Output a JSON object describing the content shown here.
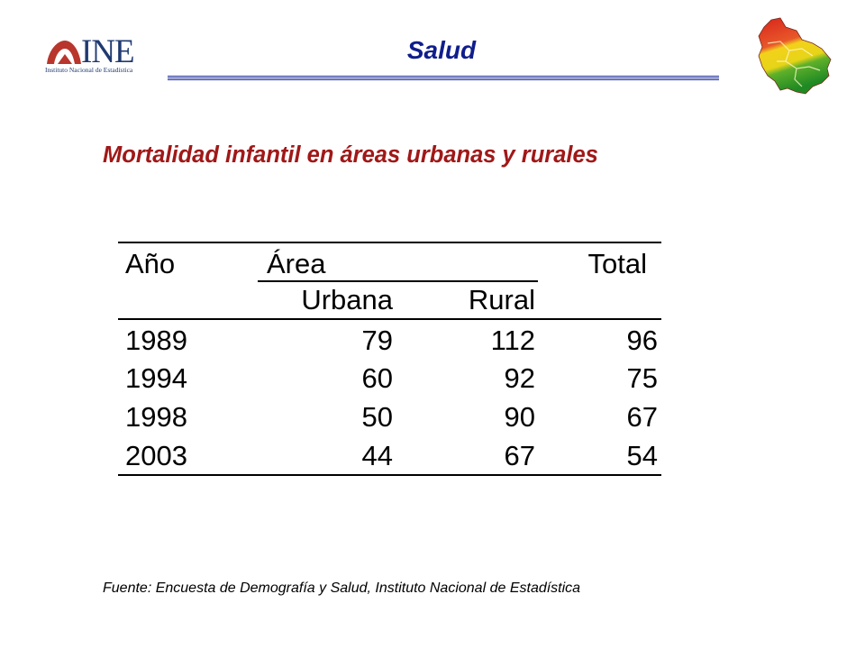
{
  "header": {
    "logo_text": "INE",
    "logo_subtitle": "Instituto Nacional de Estadística",
    "title": "Salud",
    "map_icon": "bolivia-map-icon"
  },
  "subtitle": "Mortalidad infantil en áreas urbanas y rurales",
  "table": {
    "headers": {
      "year": "Año",
      "area": "Área",
      "urban": "Urbana",
      "rural": "Rural",
      "total": "Total"
    },
    "rows": [
      {
        "year": "1989",
        "urban": "79",
        "rural": "112",
        "total": "96"
      },
      {
        "year": "1994",
        "urban": "60",
        "rural": "92",
        "total": "75"
      },
      {
        "year": "1998",
        "urban": "50",
        "rural": "90",
        "total": "67"
      },
      {
        "year": "2003",
        "urban": "44",
        "rural": "67",
        "total": "54"
      }
    ]
  },
  "footer": {
    "source": "Fuente: Encuesta de Demografía y Salud, Instituto Nacional de Estadística"
  },
  "colors": {
    "title": "#0f1e8c",
    "subtitle": "#a01818",
    "logo": "#1f3a70",
    "map_red": "#d8241c",
    "map_yellow": "#f2d21a",
    "map_green": "#2e9a2a"
  }
}
